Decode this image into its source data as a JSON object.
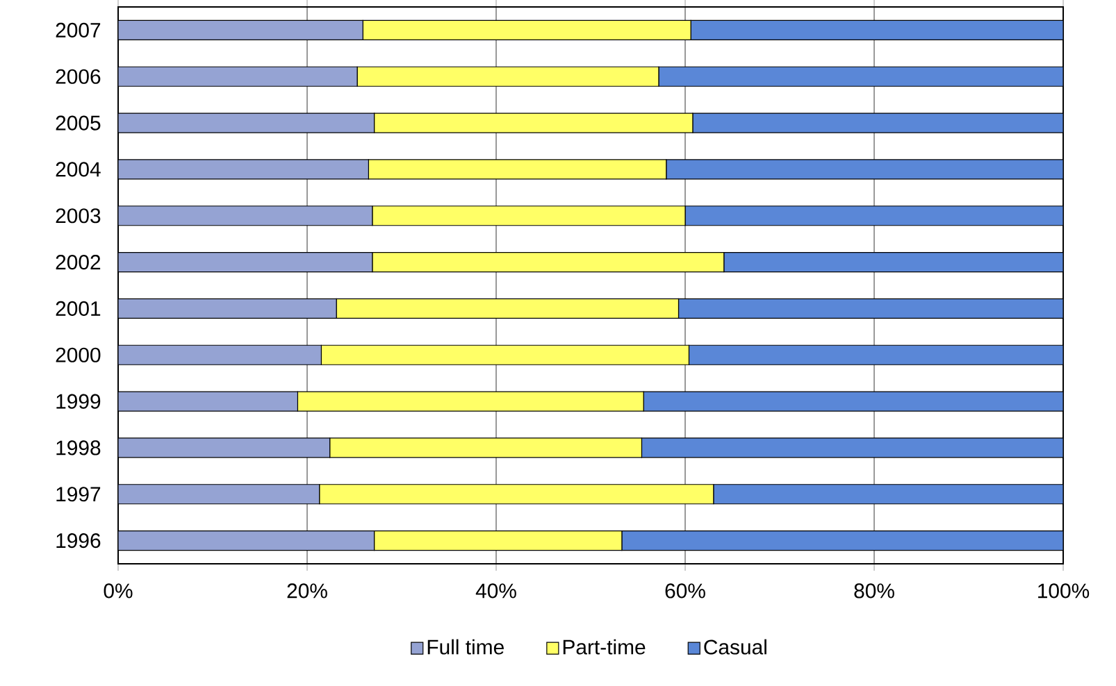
{
  "chart_data": {
    "type": "bar",
    "orientation": "horizontal",
    "stacked": true,
    "grid": "x",
    "legend": "bottom",
    "categories": [
      "2007",
      "2006",
      "2005",
      "2004",
      "2003",
      "2002",
      "2001",
      "2000",
      "1999",
      "1998",
      "1997",
      "1996"
    ],
    "series": [
      {
        "name": "Full time",
        "color": "#95a3d3",
        "values": [
          25.9,
          25.3,
          27.1,
          26.5,
          26.9,
          26.9,
          23.1,
          21.5,
          19.0,
          22.4,
          21.3,
          27.1
        ]
      },
      {
        "name": "Part-time",
        "color": "#ffff66",
        "values": [
          34.7,
          31.9,
          33.7,
          31.5,
          33.1,
          37.2,
          36.2,
          38.9,
          36.6,
          33.0,
          41.7,
          26.2
        ]
      },
      {
        "name": "Casual",
        "color": "#5a87d7",
        "values": [
          39.4,
          42.8,
          39.2,
          42.0,
          40.0,
          35.9,
          40.7,
          39.6,
          44.4,
          44.6,
          37.0,
          46.7
        ]
      }
    ],
    "xlim": [
      0,
      100
    ],
    "xticks": [
      {
        "value": 0,
        "label": "0%"
      },
      {
        "value": 20,
        "label": "20%"
      },
      {
        "value": 40,
        "label": "40%"
      },
      {
        "value": 60,
        "label": "60%"
      },
      {
        "value": 80,
        "label": "80%"
      },
      {
        "value": 100,
        "label": "100%"
      }
    ]
  }
}
